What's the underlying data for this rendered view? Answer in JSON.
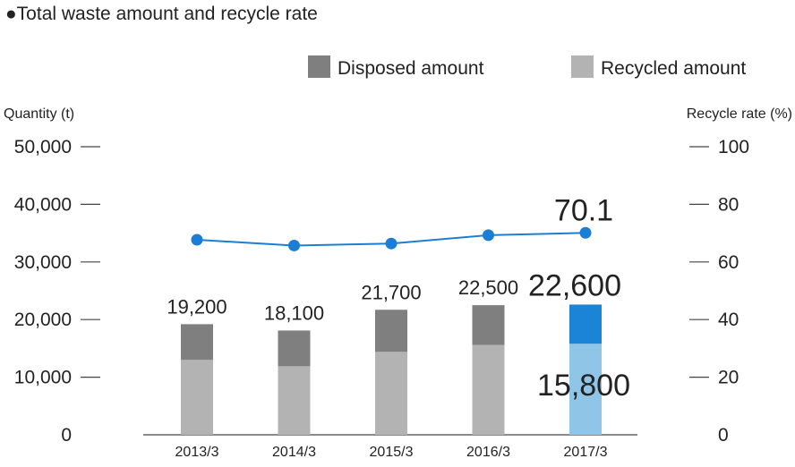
{
  "title": "●Total waste amount and recycle rate",
  "legend": [
    {
      "label": "Disposed amount",
      "color": "#7f7f7f"
    },
    {
      "label": "Recycled amount",
      "color": "#b3b3b3"
    }
  ],
  "chart_data": {
    "type": "bar",
    "categories": [
      "2013/3",
      "2014/3",
      "2015/3",
      "2016/3",
      "2017/3"
    ],
    "series": [
      {
        "name": "Recycled amount",
        "values": [
          13000,
          11900,
          14400,
          15600,
          15800
        ]
      },
      {
        "name": "Disposed amount",
        "values": [
          6200,
          6200,
          7300,
          6900,
          6800
        ]
      }
    ],
    "totals": [
      19200,
      18100,
      21700,
      22500,
      22600
    ],
    "total_labels": [
      "19,200",
      "18,100",
      "21,700",
      "22,500",
      "22,600"
    ],
    "highlight_label": "15,800",
    "line": {
      "values": [
        67.7,
        65.7,
        66.4,
        69.3,
        70.1
      ],
      "last_label": "70.1",
      "color": "#1a7fd4"
    },
    "ylabel": "Quantity (t)",
    "y2label": "Recycle rate (%)",
    "ylim": [
      0,
      50000
    ],
    "y2lim": [
      0,
      100
    ],
    "yticks": [
      "0",
      "10,000",
      "20,000",
      "30,000",
      "40,000",
      "50,000"
    ],
    "y2ticks": [
      "0",
      "20",
      "40",
      "60",
      "80",
      "100"
    ],
    "colors": {
      "disposed": "#7f7f7f",
      "recycled": "#b3b3b3",
      "highlight_disposed": "#1a85d6",
      "highlight_recycled": "#8fc6e8",
      "accent": "#1a85d6"
    }
  }
}
